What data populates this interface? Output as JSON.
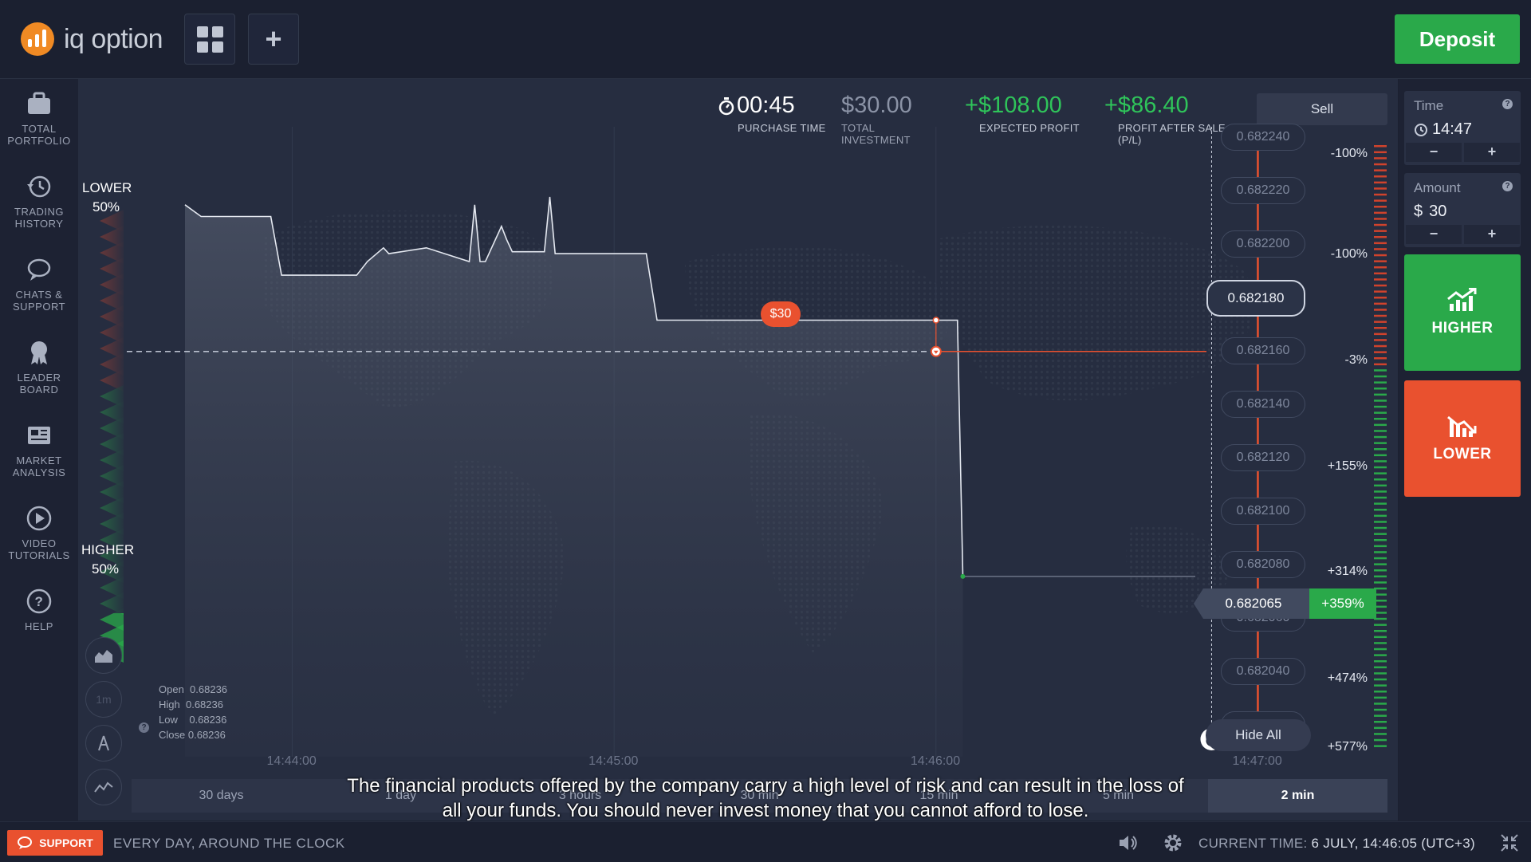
{
  "app": {
    "brand": "iq option",
    "deposit_label": "Deposit"
  },
  "sidebar": {
    "items": [
      {
        "label": "TOTAL PORTFOLIO",
        "icon": "briefcase-icon"
      },
      {
        "label": "TRADING HISTORY",
        "icon": "history-icon"
      },
      {
        "label": "CHATS & SUPPORT",
        "icon": "chat-icon"
      },
      {
        "label": "LEADER BOARD",
        "icon": "leaderboard-icon"
      },
      {
        "label": "MARKET ANALYSIS",
        "icon": "news-icon"
      },
      {
        "label": "VIDEO TUTORIALS",
        "icon": "play-icon"
      },
      {
        "label": "HELP",
        "icon": "help-icon"
      }
    ]
  },
  "stats": {
    "purchase_time": {
      "value": "00:45",
      "label": "PURCHASE TIME"
    },
    "total_investment": {
      "value": "$30.00",
      "label": "TOTAL INVESTMENT"
    },
    "expected_profit": {
      "value": "+$108.00",
      "label": "EXPECTED PROFIT"
    },
    "profit_after_sale": {
      "value": "+$86.40",
      "label": "PROFIT AFTER SALE (P/L)"
    }
  },
  "sentiment": {
    "lower_label": "LOWER",
    "lower_pct": "50%",
    "higher_label": "HIGHER",
    "higher_pct": "50%"
  },
  "sell_label": "Sell",
  "hide_all_label": "Hide All",
  "investment_marker": "$30",
  "price_axis": [
    "0.682240",
    "0.682220",
    "0.682200",
    "0.682180",
    "0.682160",
    "0.682140",
    "0.682120",
    "0.682100",
    "0.682080",
    "0.682060",
    "0.682040",
    "0.682020"
  ],
  "current_price": "0.682065",
  "current_pct": "+359%",
  "strike_price": "0.682180",
  "profit_scale": [
    "-100%",
    "-100%",
    "-3%",
    "+155%",
    "+314%",
    "+474%",
    "+577%"
  ],
  "ohlc": {
    "open_label": "Open",
    "open": "0.68236",
    "high_label": "High",
    "high": "0.68236",
    "low_label": "Low",
    "low": "0.68236",
    "close_label": "Close",
    "close": "0.68236"
  },
  "chart_tools": {
    "timeframe_label": "1m"
  },
  "time_axis": [
    "14:44:00",
    "14:45:00",
    "14:46:00",
    "14:47:00"
  ],
  "periods": [
    "30 days",
    "1 day",
    "3 hours",
    "30 min",
    "15 min",
    "5 min",
    "2 min"
  ],
  "active_period": "2 min",
  "disclaimer": "The financial products offered by the company carry a high level of risk and can result in the loss of all your funds. You should never invest money that you cannot afford to lose.",
  "right_panel": {
    "time_label": "Time",
    "time_value": "14:47",
    "amount_label": "Amount",
    "amount_currency": "$",
    "amount_value": "30",
    "minus": "−",
    "plus": "+",
    "higher_label": "HIGHER",
    "lower_label": "LOWER"
  },
  "bottom": {
    "support_label": "SUPPORT",
    "tagline": "EVERY DAY, AROUND THE CLOCK",
    "current_time_label": "CURRENT TIME:",
    "current_time_value": "6 JULY, 14:46:05 (UTC+3)"
  },
  "colors": {
    "accent_green": "#2aa94a",
    "accent_red": "#e9512f",
    "brand_orange": "#f08a24",
    "background": "#262d40"
  },
  "chart_data": {
    "type": "line",
    "x": [
      "14:43:40",
      "14:43:43",
      "14:43:56",
      "14:43:58",
      "14:44:12",
      "14:44:14",
      "14:44:17",
      "14:44:18",
      "14:44:25",
      "14:44:33",
      "14:44:34",
      "14:44:35",
      "14:44:36",
      "14:44:39",
      "14:44:40",
      "14:44:41",
      "14:44:47",
      "14:44:48",
      "14:44:49",
      "14:45:06",
      "14:45:08",
      "14:46:00",
      "14:46:04",
      "14:46:05"
    ],
    "values": [
      0.682255,
      0.682249,
      0.682249,
      0.682219,
      0.682219,
      0.682226,
      0.682233,
      0.68223,
      0.682233,
      0.682226,
      0.682255,
      0.682226,
      0.682226,
      0.682244,
      0.682237,
      0.682231,
      0.682231,
      0.682259,
      0.68223,
      0.68223,
      0.682196,
      0.682196,
      0.682196,
      0.682065
    ],
    "strike_price": 0.68218,
    "purchase_time": "14:46:00",
    "expiration_time": "14:47:00",
    "xlim": [
      "14:43:40",
      "14:47:20"
    ],
    "ylim": [
      0.682014,
      0.682259
    ]
  }
}
